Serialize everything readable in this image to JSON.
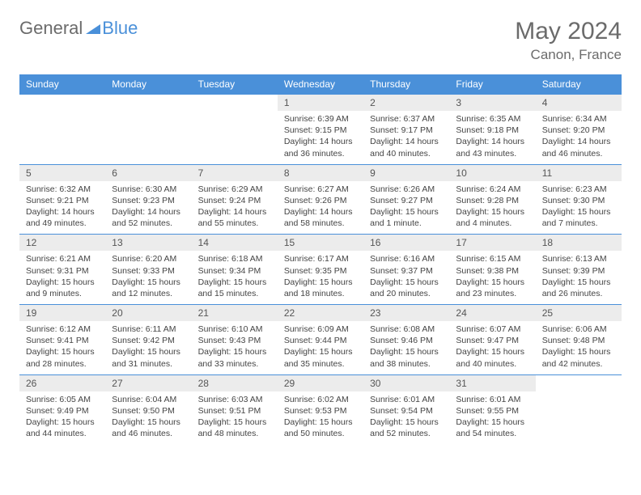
{
  "logo": {
    "part1": "General",
    "part2": "Blue"
  },
  "title": "May 2024",
  "location": "Canon, France",
  "colors": {
    "header_bg": "#4a90d9",
    "header_text": "#ffffff",
    "daynum_bg": "#ececec",
    "border": "#4a90d9",
    "title_color": "#6b6b6b",
    "text_color": "#444444"
  },
  "day_headers": [
    "Sunday",
    "Monday",
    "Tuesday",
    "Wednesday",
    "Thursday",
    "Friday",
    "Saturday"
  ],
  "weeks": [
    [
      {
        "n": "",
        "sr": "",
        "ss": "",
        "dl": ""
      },
      {
        "n": "",
        "sr": "",
        "ss": "",
        "dl": ""
      },
      {
        "n": "",
        "sr": "",
        "ss": "",
        "dl": ""
      },
      {
        "n": "1",
        "sr": "Sunrise: 6:39 AM",
        "ss": "Sunset: 9:15 PM",
        "dl": "Daylight: 14 hours and 36 minutes."
      },
      {
        "n": "2",
        "sr": "Sunrise: 6:37 AM",
        "ss": "Sunset: 9:17 PM",
        "dl": "Daylight: 14 hours and 40 minutes."
      },
      {
        "n": "3",
        "sr": "Sunrise: 6:35 AM",
        "ss": "Sunset: 9:18 PM",
        "dl": "Daylight: 14 hours and 43 minutes."
      },
      {
        "n": "4",
        "sr": "Sunrise: 6:34 AM",
        "ss": "Sunset: 9:20 PM",
        "dl": "Daylight: 14 hours and 46 minutes."
      }
    ],
    [
      {
        "n": "5",
        "sr": "Sunrise: 6:32 AM",
        "ss": "Sunset: 9:21 PM",
        "dl": "Daylight: 14 hours and 49 minutes."
      },
      {
        "n": "6",
        "sr": "Sunrise: 6:30 AM",
        "ss": "Sunset: 9:23 PM",
        "dl": "Daylight: 14 hours and 52 minutes."
      },
      {
        "n": "7",
        "sr": "Sunrise: 6:29 AM",
        "ss": "Sunset: 9:24 PM",
        "dl": "Daylight: 14 hours and 55 minutes."
      },
      {
        "n": "8",
        "sr": "Sunrise: 6:27 AM",
        "ss": "Sunset: 9:26 PM",
        "dl": "Daylight: 14 hours and 58 minutes."
      },
      {
        "n": "9",
        "sr": "Sunrise: 6:26 AM",
        "ss": "Sunset: 9:27 PM",
        "dl": "Daylight: 15 hours and 1 minute."
      },
      {
        "n": "10",
        "sr": "Sunrise: 6:24 AM",
        "ss": "Sunset: 9:28 PM",
        "dl": "Daylight: 15 hours and 4 minutes."
      },
      {
        "n": "11",
        "sr": "Sunrise: 6:23 AM",
        "ss": "Sunset: 9:30 PM",
        "dl": "Daylight: 15 hours and 7 minutes."
      }
    ],
    [
      {
        "n": "12",
        "sr": "Sunrise: 6:21 AM",
        "ss": "Sunset: 9:31 PM",
        "dl": "Daylight: 15 hours and 9 minutes."
      },
      {
        "n": "13",
        "sr": "Sunrise: 6:20 AM",
        "ss": "Sunset: 9:33 PM",
        "dl": "Daylight: 15 hours and 12 minutes."
      },
      {
        "n": "14",
        "sr": "Sunrise: 6:18 AM",
        "ss": "Sunset: 9:34 PM",
        "dl": "Daylight: 15 hours and 15 minutes."
      },
      {
        "n": "15",
        "sr": "Sunrise: 6:17 AM",
        "ss": "Sunset: 9:35 PM",
        "dl": "Daylight: 15 hours and 18 minutes."
      },
      {
        "n": "16",
        "sr": "Sunrise: 6:16 AM",
        "ss": "Sunset: 9:37 PM",
        "dl": "Daylight: 15 hours and 20 minutes."
      },
      {
        "n": "17",
        "sr": "Sunrise: 6:15 AM",
        "ss": "Sunset: 9:38 PM",
        "dl": "Daylight: 15 hours and 23 minutes."
      },
      {
        "n": "18",
        "sr": "Sunrise: 6:13 AM",
        "ss": "Sunset: 9:39 PM",
        "dl": "Daylight: 15 hours and 26 minutes."
      }
    ],
    [
      {
        "n": "19",
        "sr": "Sunrise: 6:12 AM",
        "ss": "Sunset: 9:41 PM",
        "dl": "Daylight: 15 hours and 28 minutes."
      },
      {
        "n": "20",
        "sr": "Sunrise: 6:11 AM",
        "ss": "Sunset: 9:42 PM",
        "dl": "Daylight: 15 hours and 31 minutes."
      },
      {
        "n": "21",
        "sr": "Sunrise: 6:10 AM",
        "ss": "Sunset: 9:43 PM",
        "dl": "Daylight: 15 hours and 33 minutes."
      },
      {
        "n": "22",
        "sr": "Sunrise: 6:09 AM",
        "ss": "Sunset: 9:44 PM",
        "dl": "Daylight: 15 hours and 35 minutes."
      },
      {
        "n": "23",
        "sr": "Sunrise: 6:08 AM",
        "ss": "Sunset: 9:46 PM",
        "dl": "Daylight: 15 hours and 38 minutes."
      },
      {
        "n": "24",
        "sr": "Sunrise: 6:07 AM",
        "ss": "Sunset: 9:47 PM",
        "dl": "Daylight: 15 hours and 40 minutes."
      },
      {
        "n": "25",
        "sr": "Sunrise: 6:06 AM",
        "ss": "Sunset: 9:48 PM",
        "dl": "Daylight: 15 hours and 42 minutes."
      }
    ],
    [
      {
        "n": "26",
        "sr": "Sunrise: 6:05 AM",
        "ss": "Sunset: 9:49 PM",
        "dl": "Daylight: 15 hours and 44 minutes."
      },
      {
        "n": "27",
        "sr": "Sunrise: 6:04 AM",
        "ss": "Sunset: 9:50 PM",
        "dl": "Daylight: 15 hours and 46 minutes."
      },
      {
        "n": "28",
        "sr": "Sunrise: 6:03 AM",
        "ss": "Sunset: 9:51 PM",
        "dl": "Daylight: 15 hours and 48 minutes."
      },
      {
        "n": "29",
        "sr": "Sunrise: 6:02 AM",
        "ss": "Sunset: 9:53 PM",
        "dl": "Daylight: 15 hours and 50 minutes."
      },
      {
        "n": "30",
        "sr": "Sunrise: 6:01 AM",
        "ss": "Sunset: 9:54 PM",
        "dl": "Daylight: 15 hours and 52 minutes."
      },
      {
        "n": "31",
        "sr": "Sunrise: 6:01 AM",
        "ss": "Sunset: 9:55 PM",
        "dl": "Daylight: 15 hours and 54 minutes."
      },
      {
        "n": "",
        "sr": "",
        "ss": "",
        "dl": ""
      }
    ]
  ]
}
